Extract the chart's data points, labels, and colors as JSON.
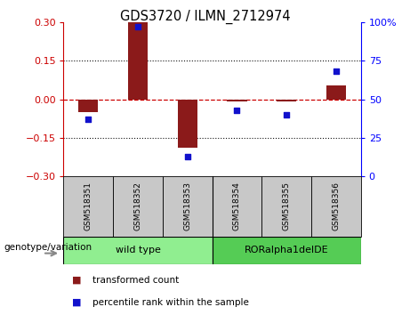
{
  "title": "GDS3720 / ILMN_2712974",
  "samples": [
    "GSM518351",
    "GSM518352",
    "GSM518353",
    "GSM518354",
    "GSM518355",
    "GSM518356"
  ],
  "transformed_count": [
    -0.05,
    0.3,
    -0.19,
    -0.01,
    -0.01,
    0.055
  ],
  "percentile_rank": [
    37,
    97,
    13,
    43,
    40,
    68
  ],
  "ylim_left": [
    -0.3,
    0.3
  ],
  "ylim_right": [
    0,
    100
  ],
  "yticks_left": [
    -0.3,
    -0.15,
    0,
    0.15,
    0.3
  ],
  "yticks_right": [
    0,
    25,
    50,
    75,
    100
  ],
  "bar_color": "#8B1A1A",
  "scatter_color": "#1111CC",
  "hline_color": "#CC0000",
  "dot_grid_color": "#111111",
  "wt_color": "#90EE90",
  "ror_color": "#55CC55",
  "label_box_color": "#C8C8C8",
  "groups": [
    {
      "label": "wild type",
      "indices": [
        0,
        1,
        2
      ]
    },
    {
      "label": "RORalpha1delDE",
      "indices": [
        3,
        4,
        5
      ]
    }
  ],
  "genotype_label": "genotype/variation",
  "legend_items": [
    {
      "label": "transformed count",
      "color": "#8B1A1A"
    },
    {
      "label": "percentile rank within the sample",
      "color": "#1111CC"
    }
  ]
}
